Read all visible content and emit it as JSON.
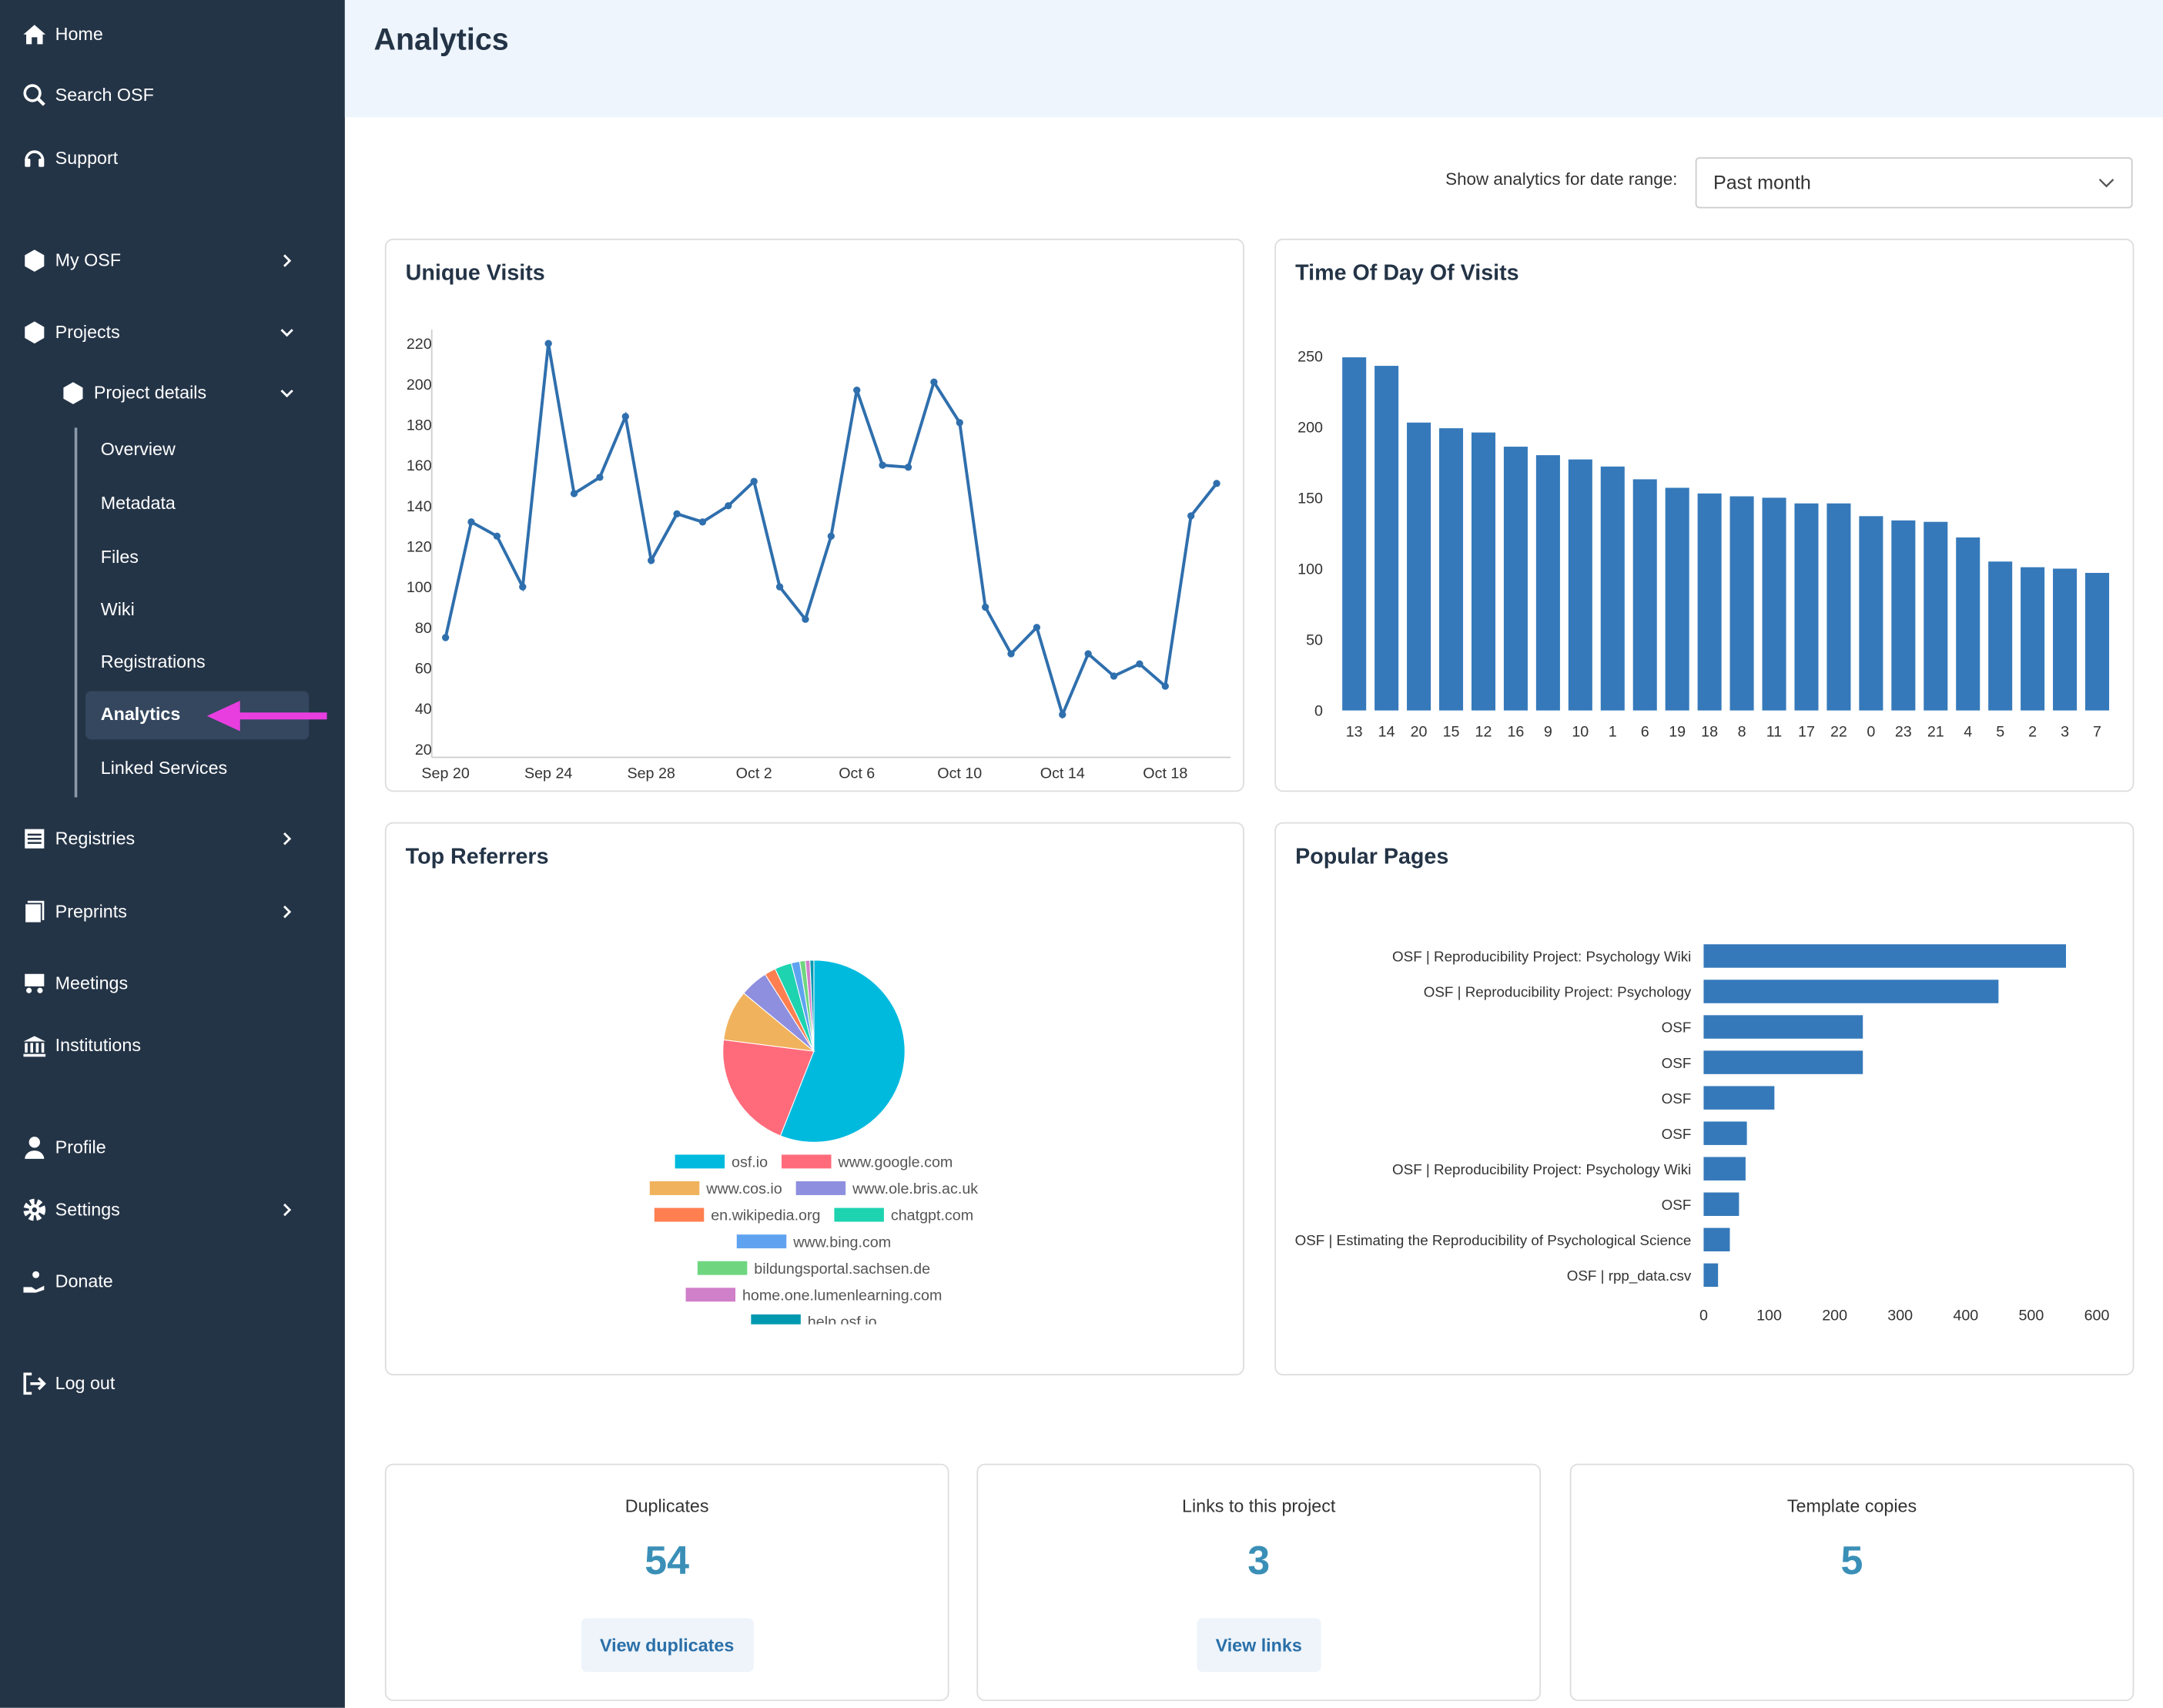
{
  "nav": [
    "Home",
    "Search OSF",
    "Support",
    "My OSF",
    "Projects",
    "Project details",
    "Overview",
    "Metadata",
    "Files",
    "Wiki",
    "Registrations",
    "Analytics",
    "Linked Services",
    "Registries",
    "Preprints",
    "Meetings",
    "Institutions",
    "Profile",
    "Settings",
    "Donate",
    "Log out"
  ],
  "header": {
    "title": "Analytics"
  },
  "date_range": {
    "label": "Show analytics for date range:",
    "value": "Past month"
  },
  "chart_data": [
    {
      "type": "line",
      "title": "Unique Visits",
      "color": "#2f6fad",
      "x": [
        "Sep 20",
        null,
        null,
        null,
        "Sep 24",
        null,
        null,
        null,
        "Sep 28",
        null,
        null,
        null,
        "Oct 2",
        null,
        null,
        null,
        "Oct 6",
        null,
        null,
        null,
        "Oct 10",
        null,
        null,
        null,
        "Oct 14",
        null,
        null,
        null,
        "Oct 18",
        null,
        null
      ],
      "values": [
        75,
        132,
        125,
        100,
        220,
        146,
        154,
        184,
        113,
        136,
        132,
        140,
        152,
        100,
        84,
        125,
        197,
        160,
        159,
        201,
        181,
        90,
        67,
        80,
        37,
        67,
        56,
        62,
        51,
        135,
        151
      ],
      "ylim": [
        20,
        220
      ],
      "yticks": [
        20,
        40,
        60,
        80,
        100,
        120,
        140,
        160,
        180,
        200,
        220
      ]
    },
    {
      "type": "bar",
      "title": "Time Of Day Of Visits",
      "color": "#3579ba",
      "categories": [
        "13",
        "14",
        "20",
        "15",
        "12",
        "16",
        "9",
        "10",
        "1",
        "6",
        "19",
        "18",
        "8",
        "11",
        "17",
        "22",
        "0",
        "23",
        "21",
        "4",
        "5",
        "2",
        "3",
        "7"
      ],
      "values": [
        249,
        243,
        203,
        199,
        196,
        186,
        180,
        177,
        172,
        163,
        157,
        153,
        151,
        150,
        146,
        146,
        137,
        134,
        133,
        122,
        105,
        101,
        100,
        97
      ],
      "ylim": [
        0,
        250
      ],
      "yticks": [
        0,
        50,
        100,
        150,
        200,
        250
      ]
    },
    {
      "type": "pie",
      "title": "Top Referrers",
      "categories": [
        "osf.io",
        "www.google.com",
        "www.cos.io",
        "www.ole.bris.ac.uk",
        "en.wikipedia.org",
        "chatgpt.com",
        "www.bing.com",
        "bildungsportal.sachsen.de",
        "home.one.lumenlearning.com",
        "help.osf.io"
      ],
      "values": [
        56,
        21,
        9,
        5,
        2,
        3,
        1.5,
        1,
        0.8,
        0.7
      ],
      "colors": [
        "#00bade",
        "#ff6b7b",
        "#f0b25c",
        "#8f8fe0",
        "#ff7f50",
        "#1dd3b0",
        "#5fa3f0",
        "#6fd67f",
        "#d07fc9",
        "#0099b0"
      ]
    },
    {
      "type": "barh",
      "title": "Popular Pages",
      "color": "#3579ba",
      "categories": [
        "OSF | Reproducibility Project: Psychology Wiki",
        "OSF | Reproducibility Project: Psychology",
        "OSF",
        "OSF",
        "OSF",
        "OSF",
        "OSF | Reproducibility Project: Psychology Wiki",
        "OSF",
        "OSF | Estimating the Reproducibility of Psychological Science",
        "OSF | rpp_data.csv"
      ],
      "values": [
        553,
        450,
        243,
        243,
        108,
        66,
        64,
        54,
        40,
        22
      ],
      "xlim": [
        0,
        600
      ],
      "xticks": [
        0,
        100,
        200,
        300,
        400,
        500,
        600
      ]
    }
  ],
  "stats": [
    {
      "label": "Duplicates",
      "value": 54,
      "button": "View duplicates"
    },
    {
      "label": "Links to this project",
      "value": 3,
      "button": "View links"
    },
    {
      "label": "Template copies",
      "value": 5
    }
  ]
}
